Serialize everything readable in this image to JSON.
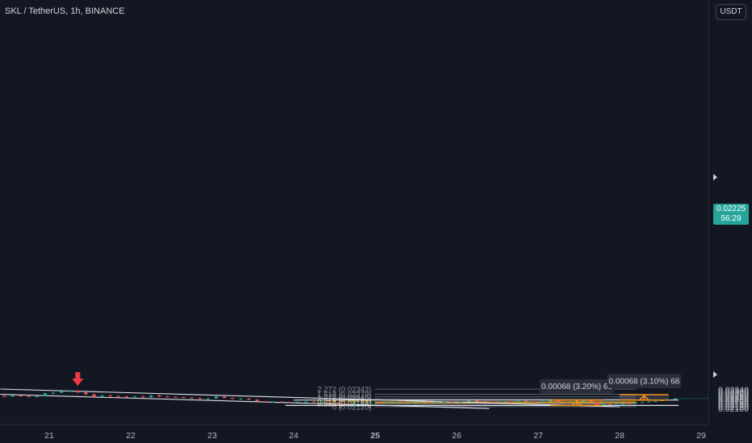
{
  "header": {
    "symbol_label": "SKL / TetherUS, 1h, BINANCE"
  },
  "axis": {
    "currency_label": "USDT"
  },
  "price_badge": {
    "price": "0.02225",
    "countdown": "56:29"
  },
  "chart_data": {
    "type": "candlestick",
    "title": "SKL / TetherUS, 1h, BINANCE",
    "ylim": [
      0.0209,
      0.02352
    ],
    "y_ticks": [
      "0.02100",
      "0.02120",
      "0.02140",
      "0.02160",
      "0.02180",
      "0.02200",
      "0.02220",
      "0.02240",
      "0.02260",
      "0.02280",
      "0.02300",
      "0.02320",
      "0.02340"
    ],
    "x_ticks": [
      "21",
      "22",
      "23",
      "24",
      "25",
      "26",
      "27",
      "28",
      "29"
    ],
    "x_range": [
      20.4,
      29.15
    ],
    "last_price": 0.02225,
    "colors": {
      "up": "#26a69a",
      "down": "#ef5350",
      "background": "#131722",
      "fib": "#787b86",
      "fib_gold": "#f0c43a",
      "measure": "#f7931a",
      "trend": "#e0e3eb"
    },
    "fib_levels": [
      {
        "label": "2.272 (0.02343)",
        "price": 0.02343
      },
      {
        "label": "1.618 (0.02279)",
        "price": 0.02279
      },
      {
        "label": "1.272 (0.02245)",
        "price": 0.02245
      },
      {
        "label": "1 (0.02219)",
        "price": 0.02219
      },
      {
        "label": "0.618 (0.02181)",
        "price": 0.02181,
        "highlight": true
      },
      {
        "label": "0.5 (0.02169)",
        "price": 0.02169,
        "highlight": true
      },
      {
        "label": "0.382 (0.02158)",
        "price": 0.02158
      },
      {
        "label": "0 (0.02120)",
        "price": 0.0212
      }
    ],
    "fib_x_range": [
      24.3,
      28.2
    ],
    "horizontal_lines": [
      {
        "price": 0.02205,
        "x_from": 24.0,
        "x_to": 29.0
      },
      {
        "price": 0.02137,
        "x_from": 23.9,
        "x_to": 29.0
      }
    ],
    "trend_lines": [
      {
        "from": [
          20.4,
          0.02345
        ],
        "to": [
          28.0,
          0.0212
        ]
      },
      {
        "from": [
          20.4,
          0.02278
        ],
        "to": [
          26.4,
          0.02098
        ]
      }
    ],
    "measurements": [
      {
        "label": "0.00068 (3.20%) 68",
        "x_from": 27.15,
        "x_to": 27.8,
        "price_from": 0.02137,
        "price_to": 0.02205
      },
      {
        "label": "0.00068 (3.10%) 68",
        "x_from": 28.0,
        "x_to": 28.6,
        "price_from": 0.02205,
        "price_to": 0.02273
      }
    ],
    "signal_arrow": {
      "x": 21.35,
      "price": 0.02345,
      "direction": "down",
      "color": "#f23645"
    },
    "candles": [
      {
        "t": 20.45,
        "o": 0.02255,
        "h": 0.02262,
        "l": 0.02244,
        "c": 0.0225
      },
      {
        "t": 20.55,
        "o": 0.0225,
        "h": 0.02268,
        "l": 0.02242,
        "c": 0.02262
      },
      {
        "t": 20.65,
        "o": 0.02262,
        "h": 0.0227,
        "l": 0.0225,
        "c": 0.02255
      },
      {
        "t": 20.75,
        "o": 0.02255,
        "h": 0.02265,
        "l": 0.0224,
        "c": 0.02246
      },
      {
        "t": 20.85,
        "o": 0.02246,
        "h": 0.02262,
        "l": 0.02238,
        "c": 0.02256
      },
      {
        "t": 20.95,
        "o": 0.02256,
        "h": 0.023,
        "l": 0.02252,
        "c": 0.0229
      },
      {
        "t": 21.05,
        "o": 0.0229,
        "h": 0.02312,
        "l": 0.0228,
        "c": 0.02298
      },
      {
        "t": 21.15,
        "o": 0.02298,
        "h": 0.02325,
        "l": 0.02292,
        "c": 0.02318
      },
      {
        "t": 21.25,
        "o": 0.02318,
        "h": 0.02342,
        "l": 0.02308,
        "c": 0.02322
      },
      {
        "t": 21.35,
        "o": 0.02322,
        "h": 0.02333,
        "l": 0.02296,
        "c": 0.02302
      },
      {
        "t": 21.45,
        "o": 0.02302,
        "h": 0.02306,
        "l": 0.0227,
        "c": 0.02278
      },
      {
        "t": 21.55,
        "o": 0.02278,
        "h": 0.02284,
        "l": 0.02235,
        "c": 0.02245
      },
      {
        "t": 21.65,
        "o": 0.02245,
        "h": 0.02272,
        "l": 0.0224,
        "c": 0.02262
      },
      {
        "t": 21.75,
        "o": 0.02262,
        "h": 0.02274,
        "l": 0.02248,
        "c": 0.02256
      },
      {
        "t": 21.85,
        "o": 0.02256,
        "h": 0.02266,
        "l": 0.02244,
        "c": 0.0225
      },
      {
        "t": 21.95,
        "o": 0.0225,
        "h": 0.0226,
        "l": 0.02236,
        "c": 0.02246
      },
      {
        "t": 22.05,
        "o": 0.02246,
        "h": 0.02258,
        "l": 0.0224,
        "c": 0.02252
      },
      {
        "t": 22.15,
        "o": 0.02252,
        "h": 0.0226,
        "l": 0.02232,
        "c": 0.0224
      },
      {
        "t": 22.25,
        "o": 0.0224,
        "h": 0.0227,
        "l": 0.02236,
        "c": 0.02264
      },
      {
        "t": 22.35,
        "o": 0.02264,
        "h": 0.02276,
        "l": 0.02244,
        "c": 0.0225
      },
      {
        "t": 22.45,
        "o": 0.0225,
        "h": 0.02258,
        "l": 0.02238,
        "c": 0.02246
      },
      {
        "t": 22.55,
        "o": 0.02246,
        "h": 0.02254,
        "l": 0.02235,
        "c": 0.02242
      },
      {
        "t": 22.65,
        "o": 0.02242,
        "h": 0.0225,
        "l": 0.0223,
        "c": 0.02236
      },
      {
        "t": 22.75,
        "o": 0.02236,
        "h": 0.02242,
        "l": 0.02222,
        "c": 0.0223
      },
      {
        "t": 22.85,
        "o": 0.0223,
        "h": 0.02238,
        "l": 0.02215,
        "c": 0.02222
      },
      {
        "t": 22.95,
        "o": 0.02222,
        "h": 0.02232,
        "l": 0.02212,
        "c": 0.02226
      },
      {
        "t": 23.05,
        "o": 0.02226,
        "h": 0.02255,
        "l": 0.02222,
        "c": 0.0225
      },
      {
        "t": 23.15,
        "o": 0.0225,
        "h": 0.02254,
        "l": 0.02226,
        "c": 0.02232
      },
      {
        "t": 23.25,
        "o": 0.02232,
        "h": 0.02236,
        "l": 0.02216,
        "c": 0.0222
      },
      {
        "t": 23.35,
        "o": 0.0222,
        "h": 0.0223,
        "l": 0.0221,
        "c": 0.02224
      },
      {
        "t": 23.45,
        "o": 0.02224,
        "h": 0.02226,
        "l": 0.02205,
        "c": 0.0221
      },
      {
        "t": 23.55,
        "o": 0.0221,
        "h": 0.02216,
        "l": 0.02186,
        "c": 0.0219
      },
      {
        "t": 23.65,
        "o": 0.0219,
        "h": 0.02194,
        "l": 0.02175,
        "c": 0.0218
      },
      {
        "t": 23.75,
        "o": 0.0218,
        "h": 0.0219,
        "l": 0.02172,
        "c": 0.02185
      },
      {
        "t": 23.85,
        "o": 0.02185,
        "h": 0.02192,
        "l": 0.02175,
        "c": 0.0218
      },
      {
        "t": 23.95,
        "o": 0.0218,
        "h": 0.02188,
        "l": 0.0217,
        "c": 0.02176
      },
      {
        "t": 24.05,
        "o": 0.02176,
        "h": 0.02186,
        "l": 0.0217,
        "c": 0.02182
      },
      {
        "t": 24.15,
        "o": 0.02182,
        "h": 0.0219,
        "l": 0.02175,
        "c": 0.02186
      },
      {
        "t": 24.25,
        "o": 0.02186,
        "h": 0.02192,
        "l": 0.02174,
        "c": 0.02178
      },
      {
        "t": 24.35,
        "o": 0.02178,
        "h": 0.02186,
        "l": 0.0217,
        "c": 0.02182
      },
      {
        "t": 24.45,
        "o": 0.02182,
        "h": 0.02188,
        "l": 0.0217,
        "c": 0.02175
      },
      {
        "t": 24.55,
        "o": 0.02175,
        "h": 0.0218,
        "l": 0.02158,
        "c": 0.02162
      },
      {
        "t": 24.65,
        "o": 0.02162,
        "h": 0.0217,
        "l": 0.02148,
        "c": 0.02152
      },
      {
        "t": 24.75,
        "o": 0.02152,
        "h": 0.02166,
        "l": 0.0212,
        "c": 0.0216
      },
      {
        "t": 24.85,
        "o": 0.0216,
        "h": 0.02175,
        "l": 0.02155,
        "c": 0.0217
      },
      {
        "t": 24.95,
        "o": 0.0217,
        "h": 0.0218,
        "l": 0.02162,
        "c": 0.02176
      },
      {
        "t": 25.05,
        "o": 0.02176,
        "h": 0.02186,
        "l": 0.02168,
        "c": 0.02172
      },
      {
        "t": 25.15,
        "o": 0.02172,
        "h": 0.02182,
        "l": 0.02166,
        "c": 0.02178
      },
      {
        "t": 25.25,
        "o": 0.02178,
        "h": 0.0219,
        "l": 0.02172,
        "c": 0.02185
      },
      {
        "t": 25.35,
        "o": 0.02185,
        "h": 0.02188,
        "l": 0.0217,
        "c": 0.02174
      },
      {
        "t": 25.45,
        "o": 0.02174,
        "h": 0.0218,
        "l": 0.02165,
        "c": 0.02176
      },
      {
        "t": 25.55,
        "o": 0.02176,
        "h": 0.02186,
        "l": 0.02172,
        "c": 0.02182
      },
      {
        "t": 25.65,
        "o": 0.02182,
        "h": 0.0219,
        "l": 0.02174,
        "c": 0.02178
      },
      {
        "t": 25.75,
        "o": 0.02178,
        "h": 0.02186,
        "l": 0.02172,
        "c": 0.02183
      },
      {
        "t": 25.85,
        "o": 0.02183,
        "h": 0.02192,
        "l": 0.02176,
        "c": 0.02188
      },
      {
        "t": 25.95,
        "o": 0.02188,
        "h": 0.02194,
        "l": 0.0218,
        "c": 0.02184
      },
      {
        "t": 26.05,
        "o": 0.02184,
        "h": 0.0219,
        "l": 0.02178,
        "c": 0.02186
      },
      {
        "t": 26.15,
        "o": 0.02186,
        "h": 0.022,
        "l": 0.02182,
        "c": 0.02196
      },
      {
        "t": 26.25,
        "o": 0.02196,
        "h": 0.02205,
        "l": 0.02188,
        "c": 0.02192
      },
      {
        "t": 26.35,
        "o": 0.02192,
        "h": 0.02196,
        "l": 0.02182,
        "c": 0.02186
      },
      {
        "t": 26.45,
        "o": 0.02186,
        "h": 0.0219,
        "l": 0.02176,
        "c": 0.0218
      },
      {
        "t": 26.55,
        "o": 0.0218,
        "h": 0.02188,
        "l": 0.02174,
        "c": 0.02184
      },
      {
        "t": 26.65,
        "o": 0.02184,
        "h": 0.02192,
        "l": 0.02176,
        "c": 0.0218
      },
      {
        "t": 26.75,
        "o": 0.0218,
        "h": 0.02198,
        "l": 0.02176,
        "c": 0.02194
      },
      {
        "t": 26.85,
        "o": 0.02194,
        "h": 0.022,
        "l": 0.02184,
        "c": 0.02188
      },
      {
        "t": 26.95,
        "o": 0.02188,
        "h": 0.02194,
        "l": 0.02178,
        "c": 0.02182
      },
      {
        "t": 27.05,
        "o": 0.02182,
        "h": 0.02196,
        "l": 0.02178,
        "c": 0.02192
      },
      {
        "t": 27.15,
        "o": 0.02192,
        "h": 0.02204,
        "l": 0.02186,
        "c": 0.02198
      },
      {
        "t": 27.25,
        "o": 0.02198,
        "h": 0.02202,
        "l": 0.02176,
        "c": 0.0218
      },
      {
        "t": 27.35,
        "o": 0.0218,
        "h": 0.02186,
        "l": 0.02165,
        "c": 0.0217
      },
      {
        "t": 27.45,
        "o": 0.0217,
        "h": 0.0219,
        "l": 0.02166,
        "c": 0.02185
      },
      {
        "t": 27.55,
        "o": 0.02185,
        "h": 0.02206,
        "l": 0.0218,
        "c": 0.022
      },
      {
        "t": 27.65,
        "o": 0.022,
        "h": 0.02204,
        "l": 0.02184,
        "c": 0.02188
      },
      {
        "t": 27.72,
        "o": 0.02188,
        "h": 0.0219,
        "l": 0.02134,
        "c": 0.0214
      },
      {
        "t": 27.8,
        "o": 0.0214,
        "h": 0.02158,
        "l": 0.02136,
        "c": 0.02152
      },
      {
        "t": 27.88,
        "o": 0.02152,
        "h": 0.0216,
        "l": 0.0214,
        "c": 0.02146
      },
      {
        "t": 27.96,
        "o": 0.02146,
        "h": 0.02154,
        "l": 0.02138,
        "c": 0.0215
      },
      {
        "t": 28.04,
        "o": 0.0215,
        "h": 0.02168,
        "l": 0.02146,
        "c": 0.02164
      },
      {
        "t": 28.12,
        "o": 0.02164,
        "h": 0.02172,
        "l": 0.02156,
        "c": 0.0216
      },
      {
        "t": 28.2,
        "o": 0.0216,
        "h": 0.02176,
        "l": 0.02156,
        "c": 0.02172
      },
      {
        "t": 28.28,
        "o": 0.02172,
        "h": 0.02184,
        "l": 0.02168,
        "c": 0.0218
      },
      {
        "t": 28.36,
        "o": 0.0218,
        "h": 0.0219,
        "l": 0.02176,
        "c": 0.02186
      },
      {
        "t": 28.44,
        "o": 0.02186,
        "h": 0.02195,
        "l": 0.02182,
        "c": 0.02192
      },
      {
        "t": 28.52,
        "o": 0.02192,
        "h": 0.0221,
        "l": 0.02188,
        "c": 0.02206
      },
      {
        "t": 28.6,
        "o": 0.02206,
        "h": 0.02218,
        "l": 0.02202,
        "c": 0.02214
      },
      {
        "t": 28.68,
        "o": 0.02214,
        "h": 0.0223,
        "l": 0.0221,
        "c": 0.02225
      }
    ]
  }
}
